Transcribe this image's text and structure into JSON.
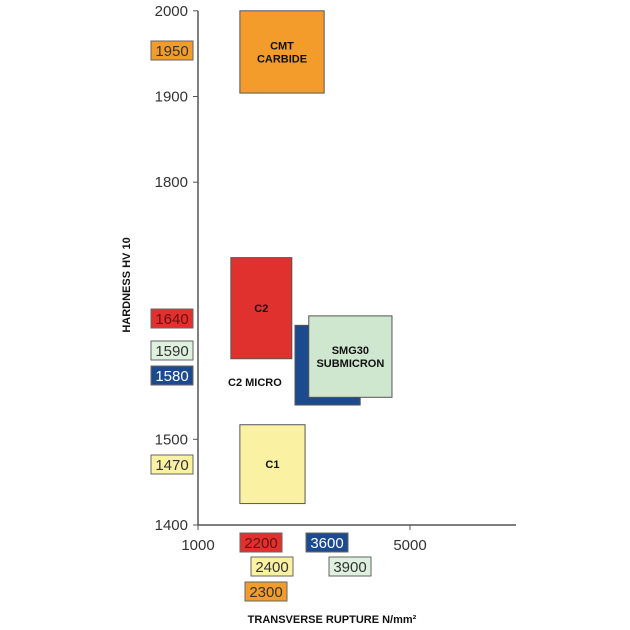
{
  "chart_data": {
    "type": "box-region",
    "xlabel": "TRANSVERSE RUPTURE N/mm²",
    "ylabel": "HARDNESS HV 10",
    "xlim": [
      1000,
      7000
    ],
    "ylim": [
      1400,
      2000
    ],
    "xticks": [
      1000,
      5000
    ],
    "yticks": [
      1400,
      1500,
      1800,
      1900,
      2000
    ],
    "grid": false,
    "regions": [
      {
        "name": "CMT CARBIDE",
        "lines": [
          "CMT",
          "CARBIDE"
        ],
        "x": [
          1790,
          3380
        ],
        "y": [
          1904,
          2000
        ],
        "color": "#f39c2c"
      },
      {
        "name": "C2 MICRO",
        "lines": [
          "C2 MICRO"
        ],
        "x": [
          2830,
          4060
        ],
        "y": [
          1540,
          1633
        ],
        "color": "#1c4a8f",
        "label_outside": true
      },
      {
        "name": "C2",
        "lines": [
          "C2"
        ],
        "x": [
          1620,
          2770
        ],
        "y": [
          1594,
          1712
        ],
        "color": "#e1312e"
      },
      {
        "name": "SMG30 SUBMICRON",
        "lines": [
          "SMG30",
          "SUBMICRON"
        ],
        "x": [
          3090,
          4660
        ],
        "y": [
          1549,
          1644
        ],
        "color": "#cfe6cf"
      },
      {
        "name": "C1",
        "lines": [
          "C1"
        ],
        "x": [
          1790,
          3020
        ],
        "y": [
          1425,
          1517
        ],
        "color": "#fbf1a3"
      }
    ],
    "hardness_labels": [
      {
        "text": "1950",
        "color": "#f39c2c",
        "fg": "#333"
      },
      {
        "text": "1640",
        "color": "#e1312e",
        "fg": "#6b0f0f"
      },
      {
        "text": "1590",
        "color": "#dff0df",
        "fg": "#333"
      },
      {
        "text": "1580",
        "color": "#1c4a8f",
        "fg": "#fff"
      },
      {
        "text": "1470",
        "color": "#fbf1a3",
        "fg": "#333"
      }
    ],
    "rupture_labels": [
      {
        "text": "2200",
        "color": "#e1312e",
        "fg": "#6b0f0f"
      },
      {
        "text": "3600",
        "color": "#1c4a8f",
        "fg": "#fff"
      },
      {
        "text": "2400",
        "color": "#fbf1a3",
        "fg": "#333"
      },
      {
        "text": "3900",
        "color": "#dff0df",
        "fg": "#333"
      },
      {
        "text": "2300",
        "color": "#f39c2c",
        "fg": "#333"
      }
    ]
  }
}
